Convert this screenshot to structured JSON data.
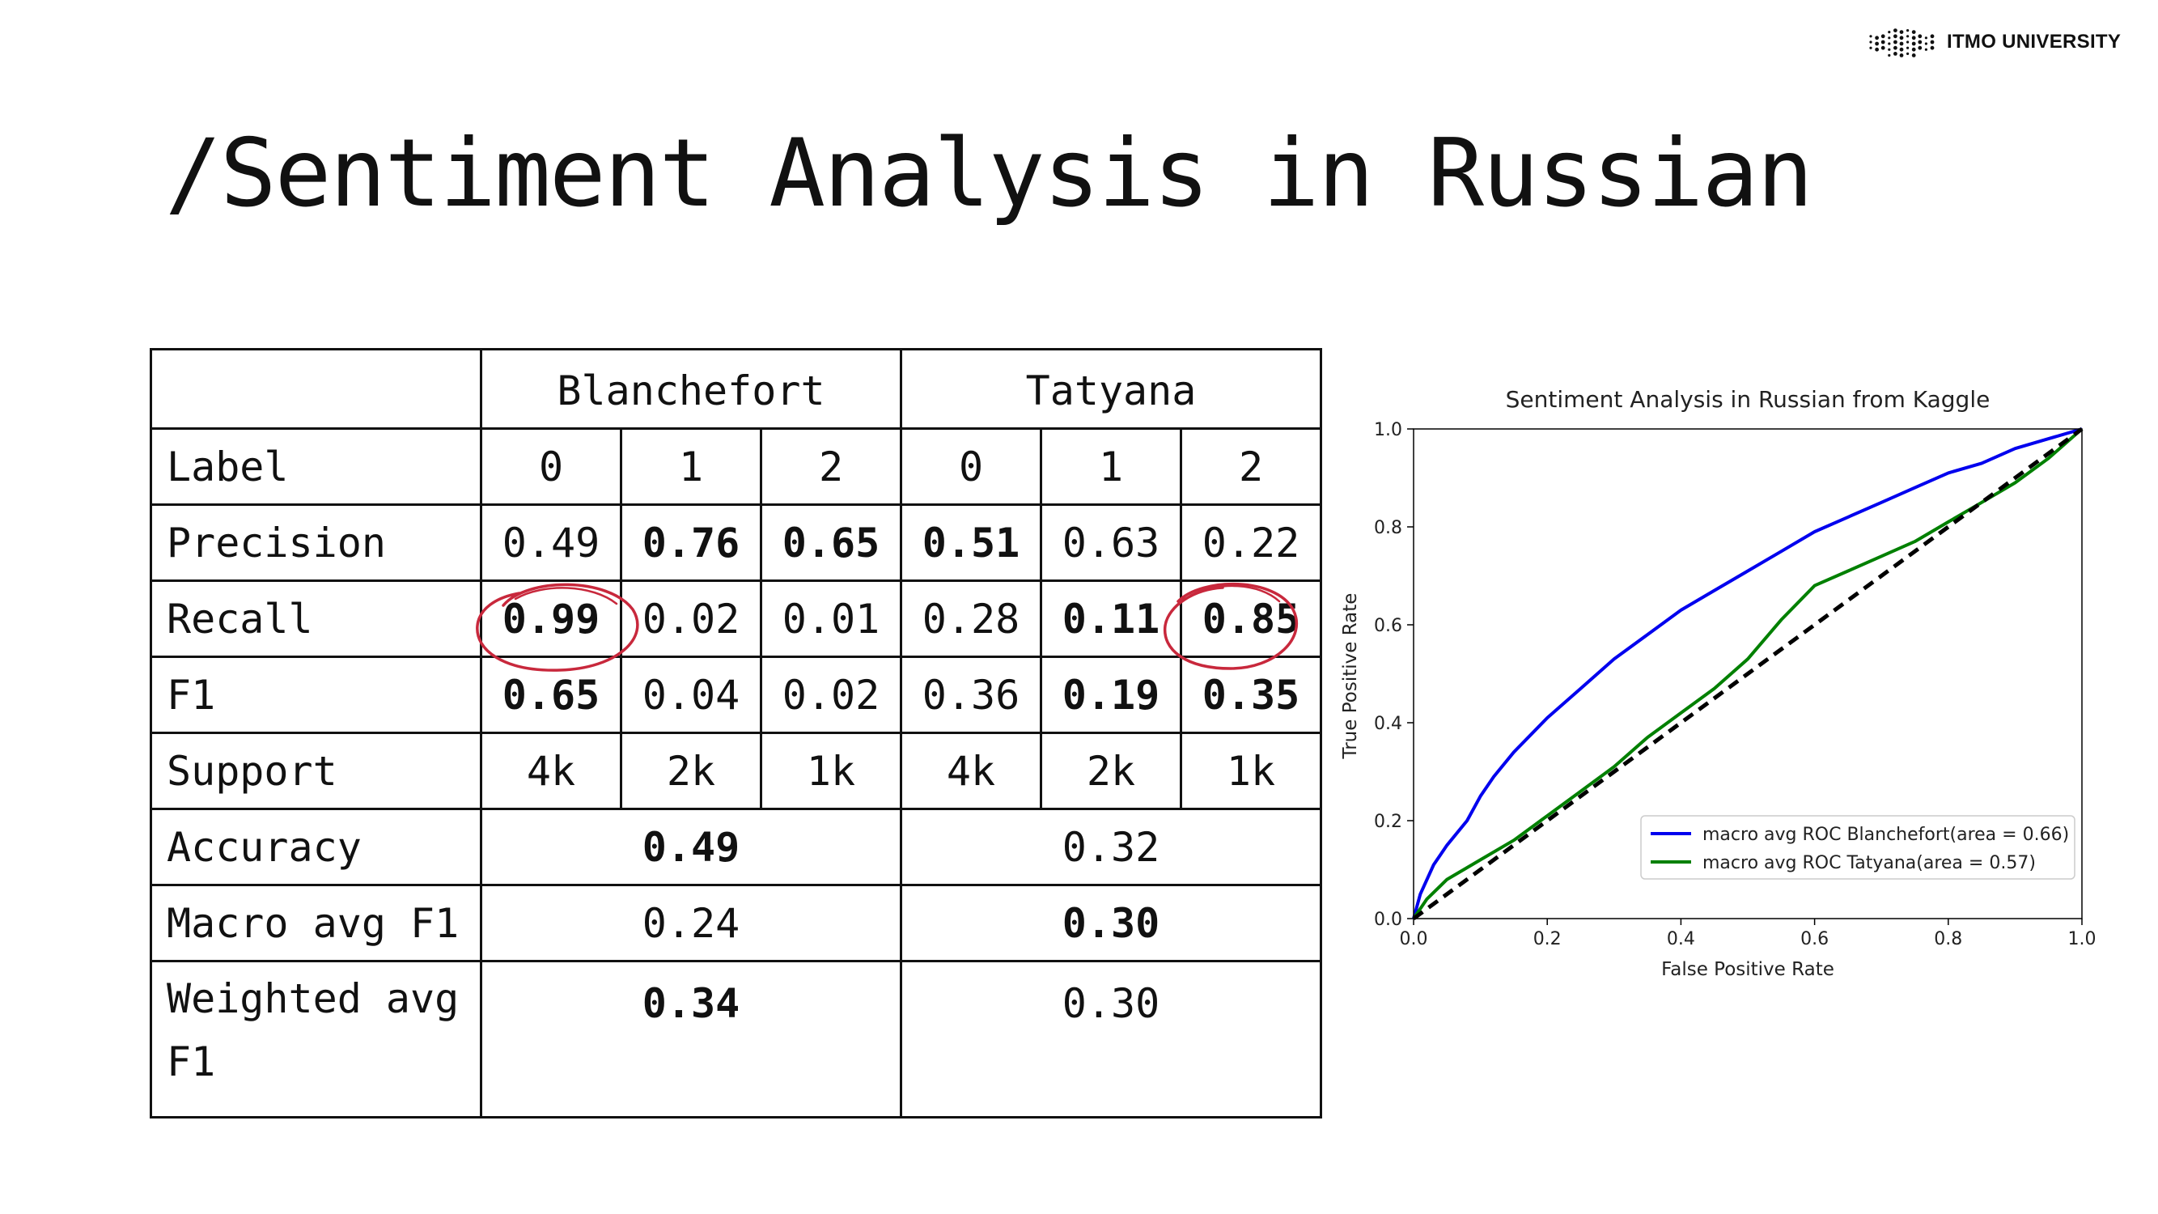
{
  "logo": {
    "text": "ITMO UNIVERSITY"
  },
  "slide": {
    "title": "/Sentiment Analysis in Russian"
  },
  "table": {
    "groups": [
      "Blanchefort",
      "Tatyana"
    ],
    "labels_header": "Label",
    "labels": [
      "0",
      "1",
      "2",
      "0",
      "1",
      "2"
    ],
    "rows": [
      {
        "name": "Precision",
        "values": [
          "0.49",
          "0.76",
          "0.65",
          "0.51",
          "0.63",
          "0.22"
        ],
        "bold": [
          false,
          true,
          true,
          true,
          false,
          false
        ]
      },
      {
        "name": "Recall",
        "values": [
          "0.99",
          "0.02",
          "0.01",
          "0.28",
          "0.11",
          "0.85"
        ],
        "bold": [
          true,
          false,
          false,
          false,
          true,
          true
        ]
      },
      {
        "name": "F1",
        "values": [
          "0.65",
          "0.04",
          "0.02",
          "0.36",
          "0.19",
          "0.35"
        ],
        "bold": [
          true,
          false,
          false,
          false,
          true,
          true
        ]
      },
      {
        "name": "Support",
        "values": [
          "4k",
          "2k",
          "1k",
          "4k",
          "2k",
          "1k"
        ],
        "bold": [
          false,
          false,
          false,
          false,
          false,
          false
        ]
      }
    ],
    "summary": [
      {
        "name": "Accuracy",
        "blanchefort": "0.49",
        "tatyana": "0.32",
        "bold": "blanchefort"
      },
      {
        "name": "Macro avg F1",
        "blanchefort": "0.24",
        "tatyana": "0.30",
        "bold": "tatyana"
      },
      {
        "name": "Weighted avg F1",
        "blanchefort": "0.34",
        "tatyana": "0.30",
        "bold": "blanchefort"
      }
    ],
    "highlight_color": "#c8283c"
  },
  "chart_data": {
    "type": "line",
    "title": "Sentiment Analysis in Russian from Kaggle",
    "xlabel": "False Positive Rate",
    "ylabel": "True Positive Rate",
    "xlim": [
      0.0,
      1.0
    ],
    "ylim": [
      0.0,
      1.0
    ],
    "xticks": [
      "0.0",
      "0.2",
      "0.4",
      "0.6",
      "0.8",
      "1.0"
    ],
    "yticks": [
      "0.0",
      "0.2",
      "0.4",
      "0.6",
      "0.8",
      "1.0"
    ],
    "grid": false,
    "legend_position": "lower-right",
    "series": [
      {
        "name": "macro avg ROC Blanchefort(area = 0.66)",
        "color": "#0000ee",
        "x": [
          0.0,
          0.01,
          0.03,
          0.05,
          0.08,
          0.1,
          0.12,
          0.15,
          0.2,
          0.25,
          0.3,
          0.35,
          0.4,
          0.45,
          0.5,
          0.55,
          0.6,
          0.65,
          0.7,
          0.75,
          0.8,
          0.85,
          0.9,
          0.95,
          1.0
        ],
        "y": [
          0.0,
          0.05,
          0.11,
          0.15,
          0.2,
          0.25,
          0.29,
          0.34,
          0.41,
          0.47,
          0.53,
          0.58,
          0.63,
          0.67,
          0.71,
          0.75,
          0.79,
          0.82,
          0.85,
          0.88,
          0.91,
          0.93,
          0.96,
          0.98,
          1.0
        ]
      },
      {
        "name": "macro avg ROC Tatyana(area = 0.57)",
        "color": "#008000",
        "x": [
          0.0,
          0.02,
          0.05,
          0.1,
          0.15,
          0.2,
          0.25,
          0.3,
          0.35,
          0.4,
          0.45,
          0.5,
          0.55,
          0.6,
          0.65,
          0.7,
          0.75,
          0.8,
          0.85,
          0.9,
          0.95,
          1.0
        ],
        "y": [
          0.0,
          0.04,
          0.08,
          0.12,
          0.16,
          0.21,
          0.26,
          0.31,
          0.37,
          0.42,
          0.47,
          0.53,
          0.61,
          0.68,
          0.71,
          0.74,
          0.77,
          0.81,
          0.85,
          0.89,
          0.94,
          1.0
        ]
      },
      {
        "name": "",
        "color": "#000000",
        "dashed": true,
        "x": [
          0.0,
          1.0
        ],
        "y": [
          0.0,
          1.0
        ]
      }
    ]
  }
}
